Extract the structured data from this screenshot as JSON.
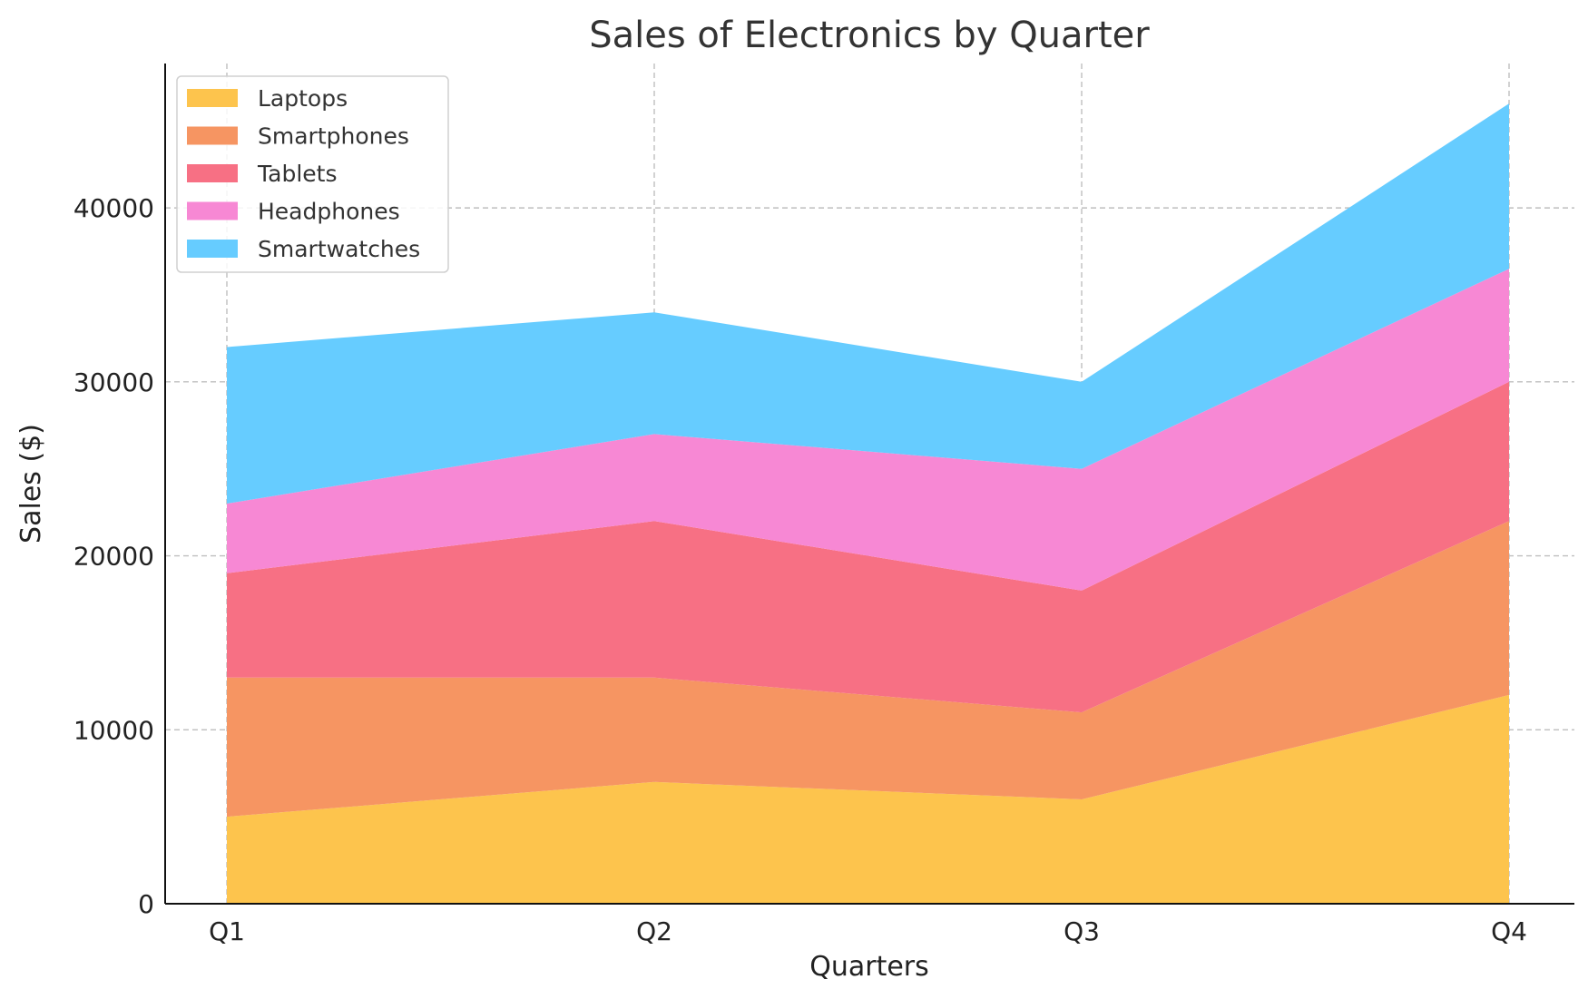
{
  "chart_data": {
    "type": "area",
    "stacked": true,
    "title": "Sales of Electronics by Quarter",
    "xlabel": "Quarters",
    "ylabel": "Sales ($)",
    "categories": [
      "Q1",
      "Q2",
      "Q3",
      "Q4"
    ],
    "ylim": [
      0,
      48300
    ],
    "yticks": [
      0,
      10000,
      20000,
      30000,
      40000
    ],
    "grid": true,
    "legend_position": "top-left",
    "series": [
      {
        "name": "Laptops",
        "color": "#FDC44D",
        "values": [
          5000,
          7000,
          6000,
          12000
        ]
      },
      {
        "name": "Smartphones",
        "color": "#F69562",
        "values": [
          8000,
          6000,
          5000,
          10000
        ]
      },
      {
        "name": "Tablets",
        "color": "#F77084",
        "values": [
          6000,
          9000,
          7000,
          8000
        ]
      },
      {
        "name": "Headphones",
        "color": "#F788D4",
        "values": [
          4000,
          5000,
          7000,
          6500
        ]
      },
      {
        "name": "Smartwatches",
        "color": "#66CCFF",
        "values": [
          9000,
          7000,
          5000,
          9500
        ]
      }
    ]
  }
}
